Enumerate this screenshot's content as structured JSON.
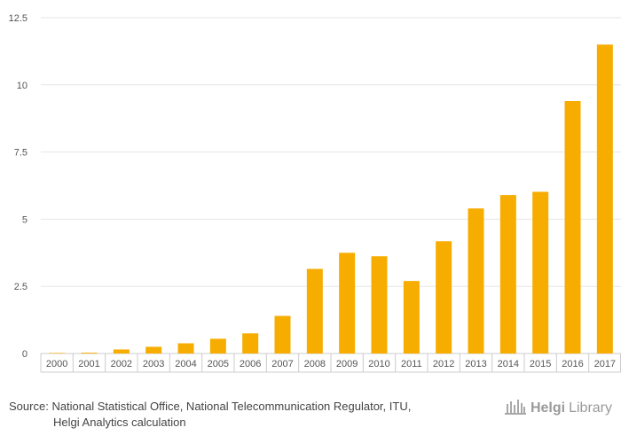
{
  "chart_data": {
    "type": "bar",
    "categories": [
      "2000",
      "2001",
      "2002",
      "2003",
      "2004",
      "2005",
      "2006",
      "2007",
      "2008",
      "2009",
      "2010",
      "2011",
      "2012",
      "2013",
      "2014",
      "2015",
      "2016",
      "2017"
    ],
    "values": [
      0.02,
      0.03,
      0.15,
      0.25,
      0.38,
      0.55,
      0.75,
      1.4,
      3.15,
      3.75,
      3.62,
      2.7,
      4.18,
      5.4,
      5.9,
      6.02,
      9.4,
      11.5
    ],
    "ylim": [
      0,
      12.5
    ],
    "yticks": [
      0,
      2.5,
      5,
      7.5,
      10,
      12.5
    ],
    "ytick_labels": [
      "0",
      "2.5",
      "5",
      "7.5",
      "10",
      "12.5"
    ],
    "title": "",
    "xlabel": "",
    "ylabel": "",
    "bar_color": "#F7AD00",
    "grid": true
  },
  "source": {
    "prefix": "Source:",
    "line1": "National Statistical Office, National Telecommunication Regulator, ITU,",
    "line2": "Helgi Analytics calculation"
  },
  "logo": {
    "brand": "Helgi",
    "suffix": "Library",
    "icon": "library-building-icon"
  }
}
